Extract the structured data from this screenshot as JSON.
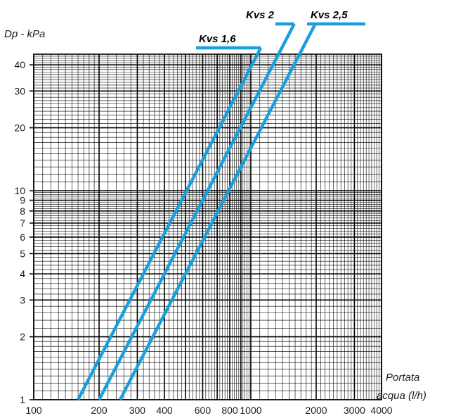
{
  "chart_data": {
    "type": "line",
    "title": "",
    "ylabel": "Dp - kPa",
    "xlabel_lines": [
      "Portata",
      "acqua (l/h)"
    ],
    "x_scale": "log",
    "y_scale": "log",
    "xlim": [
      100,
      4000
    ],
    "ylim": [
      1,
      45
    ],
    "x_ticks": [
      100,
      200,
      300,
      400,
      600,
      800,
      1000,
      2000,
      3000,
      4000
    ],
    "x_tick_labels": [
      "100",
      "200",
      "300",
      "400",
      "600",
      "800",
      "1000",
      "2000",
      "3000",
      "4000"
    ],
    "y_ticks": [
      1,
      2,
      3,
      4,
      5,
      6,
      7,
      8,
      9,
      10,
      20,
      30,
      40
    ],
    "y_tick_labels": [
      "1",
      "2",
      "3",
      "4",
      "5",
      "6",
      "7",
      "8",
      "9",
      "10",
      "20",
      "30",
      "40"
    ],
    "grid": true,
    "line_color": "#1a9fdc",
    "series": [
      {
        "name": "Kvs 1,6",
        "kvs": 1.6,
        "x": [
          160,
          1012
        ],
        "y": [
          1,
          40
        ]
      },
      {
        "name": "Kvs 2",
        "kvs": 2.0,
        "x": [
          200,
          1265
        ],
        "y": [
          1,
          40
        ]
      },
      {
        "name": "Kvs 2,5",
        "kvs": 2.5,
        "x": [
          250,
          1581
        ],
        "y": [
          1,
          40
        ]
      }
    ]
  }
}
